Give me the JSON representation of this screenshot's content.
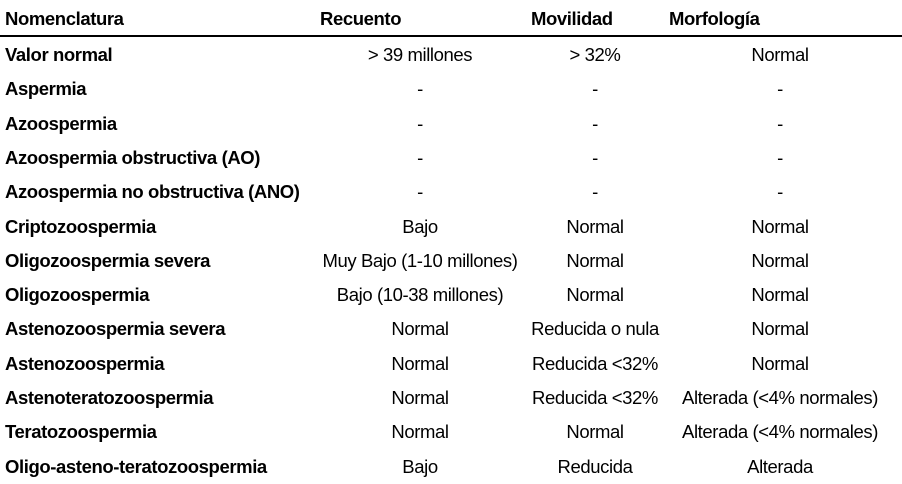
{
  "headers": {
    "nomenclatura": "Nomenclatura",
    "recuento": "Recuento",
    "movilidad": "Movilidad",
    "morfologia": "Morfología"
  },
  "rows": [
    {
      "name": "Valor normal",
      "recuento": "> 39 millones",
      "movilidad": "> 32%",
      "morfologia": "Normal"
    },
    {
      "name": "Aspermia",
      "recuento": "-",
      "movilidad": "-",
      "morfologia": "-"
    },
    {
      "name": "Azoospermia",
      "recuento": "-",
      "movilidad": "-",
      "morfologia": "-"
    },
    {
      "name": "Azoospermia obstructiva (AO)",
      "recuento": "-",
      "movilidad": "-",
      "morfologia": "-"
    },
    {
      "name": "Azoospermia no obstructiva (ANO)",
      "recuento": "-",
      "movilidad": "-",
      "morfologia": "-"
    },
    {
      "name": "Criptozoospermia",
      "recuento": "Bajo",
      "movilidad": "Normal",
      "morfologia": "Normal"
    },
    {
      "name": "Oligozoospermia severa",
      "recuento": "Muy Bajo (1-10 millones)",
      "movilidad": "Normal",
      "morfologia": "Normal"
    },
    {
      "name": "Oligozoospermia",
      "recuento": "Bajo (10-38 millones)",
      "movilidad": "Normal",
      "morfologia": "Normal"
    },
    {
      "name": "Astenozoospermia severa",
      "recuento": "Normal",
      "movilidad": "Reducida o nula",
      "morfologia": "Normal"
    },
    {
      "name": "Astenozoospermia",
      "recuento": "Normal",
      "movilidad": "Reducida <32%",
      "morfologia": "Normal"
    },
    {
      "name": "Astenoteratozoospermia",
      "recuento": "Normal",
      "movilidad": "Reducida <32%",
      "morfologia": "Alterada (<4% normales)"
    },
    {
      "name": "Teratozoospermia",
      "recuento": "Normal",
      "movilidad": "Normal",
      "morfologia": "Alterada (<4% normales)"
    },
    {
      "name": "Oligo-asteno-teratozoospermia",
      "recuento": "Bajo",
      "movilidad": "Reducida",
      "morfologia": "Alterada"
    }
  ]
}
